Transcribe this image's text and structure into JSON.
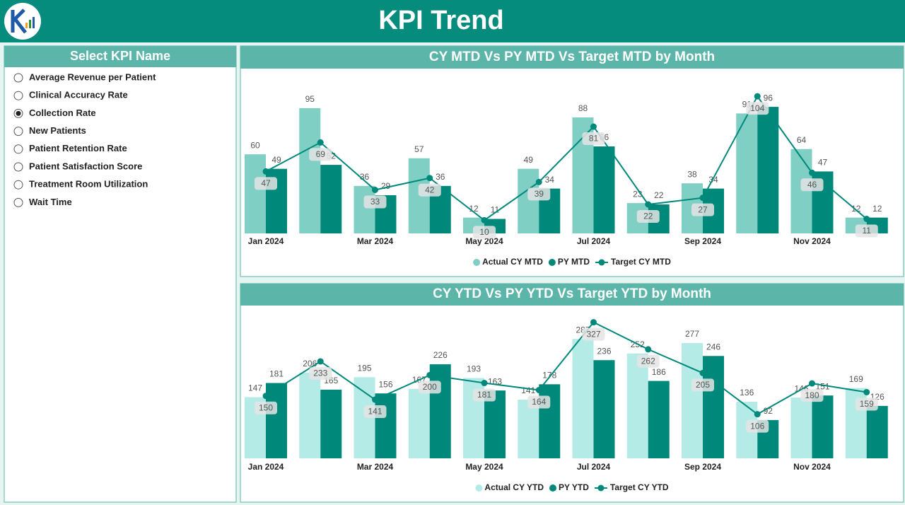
{
  "header": {
    "title": "KPI Trend"
  },
  "slicer": {
    "title": "Select KPI Name",
    "selected": 2,
    "items": [
      "Average Revenue per Patient",
      "Clinical Accuracy Rate",
      "Collection Rate",
      "New Patients",
      "Patient Retention Rate",
      "Patient Satisfaction Score",
      "Treatment Room Utilization",
      "Wait Time"
    ]
  },
  "chart_data": [
    {
      "type": "combo",
      "title": "CY MTD Vs PY MTD Vs Target MTD by Month",
      "categories": [
        "Jan 2024",
        null,
        "Mar 2024",
        null,
        "May 2024",
        null,
        "Jul 2024",
        null,
        "Sep 2024",
        null,
        "Nov 2024",
        null
      ],
      "ylim": [
        0,
        110
      ],
      "series": [
        {
          "name": "Actual CY MTD",
          "type": "bar",
          "color": "#7fcfc5",
          "values": [
            60,
            95,
            36,
            57,
            12,
            49,
            88,
            23,
            38,
            91,
            64,
            12
          ]
        },
        {
          "name": "PY MTD",
          "type": "bar",
          "color": "#00897b",
          "values": [
            49,
            52,
            29,
            36,
            11,
            34,
            66,
            22,
            34,
            96,
            47,
            12
          ]
        },
        {
          "name": "Target CY MTD",
          "type": "line",
          "color": "#00897b",
          "values": [
            47,
            69,
            33,
            42,
            10,
            39,
            81,
            22,
            27,
            104,
            46,
            11
          ]
        }
      ]
    },
    {
      "type": "combo",
      "title": "CY YTD Vs PY YTD Vs Target YTD by Month",
      "categories": [
        "Jan 2024",
        null,
        "Mar 2024",
        null,
        "May 2024",
        null,
        "Jul 2024",
        null,
        "Sep 2024",
        null,
        "Nov 2024",
        null
      ],
      "ylim": [
        0,
        340
      ],
      "series": [
        {
          "name": "Actual CY YTD",
          "type": "bar",
          "color": "#b5ebe6",
          "values": [
            147,
            206,
            195,
            167,
            193,
            141,
            287,
            252,
            277,
            136,
            146,
            169
          ]
        },
        {
          "name": "PY YTD",
          "type": "bar",
          "color": "#00897b",
          "values": [
            181,
            165,
            156,
            226,
            163,
            178,
            236,
            186,
            246,
            92,
            151,
            126
          ]
        },
        {
          "name": "Target CY YTD",
          "type": "line",
          "color": "#00897b",
          "values": [
            150,
            233,
            141,
            200,
            181,
            164,
            327,
            262,
            205,
            106,
            180,
            159
          ]
        }
      ]
    }
  ]
}
